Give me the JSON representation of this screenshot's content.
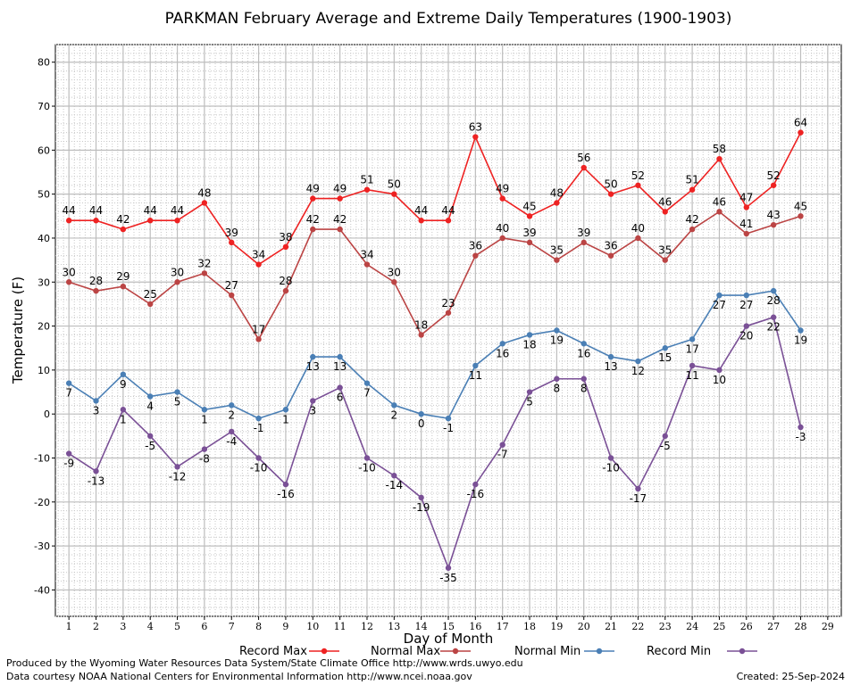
{
  "chart_data": {
    "type": "line",
    "title": "PARKMAN February Average and Extreme Daily Temperatures (1900-1903)",
    "xlabel": "Day of Month",
    "ylabel": "Temperature (F)",
    "xlim": [
      0.5,
      29.5
    ],
    "ylim": [
      -46,
      84
    ],
    "x_ticks": [
      1,
      2,
      3,
      4,
      5,
      6,
      7,
      8,
      9,
      10,
      11,
      12,
      13,
      14,
      15,
      16,
      17,
      18,
      19,
      20,
      21,
      22,
      23,
      24,
      25,
      26,
      27,
      28,
      29
    ],
    "y_ticks": [
      -40,
      -30,
      -20,
      -10,
      0,
      10,
      20,
      30,
      40,
      50,
      60,
      70,
      80
    ],
    "grid": true,
    "legend_position": "bottom",
    "x": [
      1,
      2,
      3,
      4,
      5,
      6,
      7,
      8,
      9,
      10,
      11,
      12,
      13,
      14,
      15,
      16,
      17,
      18,
      19,
      20,
      21,
      22,
      23,
      24,
      25,
      26,
      27,
      28
    ],
    "series": [
      {
        "name": "Record Max",
        "color": "#ee2222",
        "values": [
          44,
          44,
          42,
          44,
          44,
          48,
          39,
          34,
          38,
          49,
          49,
          51,
          50,
          44,
          44,
          63,
          49,
          45,
          48,
          56,
          50,
          52,
          46,
          51,
          58,
          47,
          52,
          64
        ],
        "label_position": "above"
      },
      {
        "name": "Normal Max",
        "color": "#bb4444",
        "values": [
          30,
          28,
          29,
          25,
          30,
          32,
          27,
          17,
          28,
          42,
          42,
          34,
          30,
          18,
          23,
          36,
          40,
          39,
          35,
          39,
          36,
          40,
          35,
          42,
          46,
          41,
          43,
          45
        ],
        "label_position": "above"
      },
      {
        "name": "Normal Min",
        "color": "#4a7fb5",
        "values": [
          7,
          3,
          9,
          4,
          5,
          1,
          2,
          -1,
          1,
          13,
          13,
          7,
          2,
          0,
          -1,
          11,
          16,
          18,
          19,
          16,
          13,
          12,
          15,
          17,
          27,
          27,
          28,
          19
        ],
        "label_position": "below"
      },
      {
        "name": "Record Min",
        "color": "#7a5096",
        "values": [
          -9,
          -13,
          1,
          -5,
          -12,
          -8,
          -4,
          -10,
          -16,
          3,
          6,
          -10,
          -14,
          -19,
          -35,
          -16,
          -7,
          5,
          8,
          8,
          -10,
          -17,
          -5,
          11,
          10,
          20,
          22,
          -3
        ],
        "label_position": "below"
      }
    ]
  },
  "footer": {
    "produced_by": "Produced by the Wyoming Water Resources Data System/State Climate Office http://www.wrds.uwyo.edu",
    "courtesy": "Data courtesy NOAA National Centers for Environmental Information http://www.ncei.noaa.gov",
    "created": "Created:  25-Sep-2024"
  }
}
